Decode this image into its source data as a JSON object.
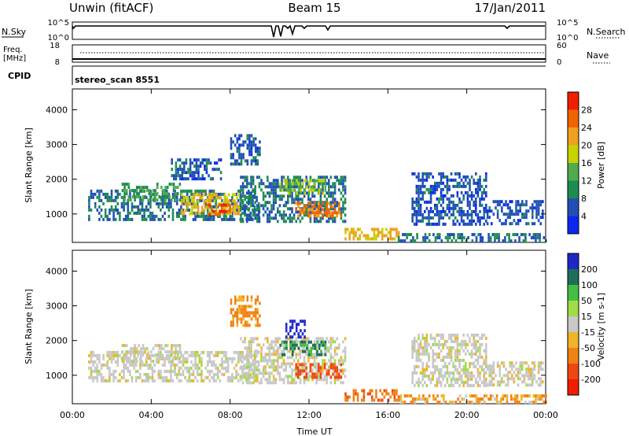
{
  "header": {
    "left": "Unwin (fitACF)",
    "center": "Beam 15",
    "right": "17/Jan/2011"
  },
  "status_panels": {
    "nsky_label": "N.Sky",
    "nsky_ticks": [
      "10^5",
      "10^0"
    ],
    "nsearch_label": "N.Search",
    "nsearch_ticks": [
      "10^5",
      "10^0"
    ],
    "freq_label": "Freq.",
    "freq_unit": "[MHz]",
    "freq_ticks": [
      "18",
      "8"
    ],
    "nave_label": "Nave",
    "nave_ticks": [
      "60",
      "0"
    ],
    "cpid_label": "CPID",
    "cpid_value": "stereo_scan 8551"
  },
  "colors": {
    "power": [
      "#0a28f0",
      "#2050b4",
      "#1e8c50",
      "#50aa50",
      "#c8d200",
      "#f0a01e",
      "#f06400",
      "#f01e00"
    ],
    "velocity": [
      "#1e28c8",
      "#1e6e5a",
      "#46be46",
      "#a0dc46",
      "#c8c8c8",
      "#f0b428",
      "#f08214",
      "#f04614",
      "#f01e00"
    ]
  },
  "chart_data": [
    {
      "type": "heatmap",
      "title": "Power",
      "ylabel": "Slant Range [km]",
      "xlabel": "",
      "colorbar_label": "Power [dB]",
      "colorbar_ticks": [
        "28",
        "24",
        "20",
        "16",
        "12",
        "8",
        "4"
      ],
      "colorbar_range": [
        0,
        32
      ],
      "xlim_hours": [
        0,
        24
      ],
      "ylim_km": [
        180,
        4600
      ],
      "x_ticks": [
        "00:00",
        "04:00",
        "08:00",
        "12:00",
        "16:00",
        "20:00",
        "00:00"
      ],
      "y_ticks": [
        1000,
        2000,
        3000,
        4000
      ],
      "bands": [
        {
          "t": [
            0.8,
            9.5
          ],
          "r": [
            800,
            1700
          ],
          "v": 8
        },
        {
          "t": [
            2.5,
            5.5
          ],
          "r": [
            1400,
            1900
          ],
          "v": 12
        },
        {
          "t": [
            5.5,
            8.5
          ],
          "r": [
            1000,
            1600
          ],
          "v": 20
        },
        {
          "t": [
            6.8,
            8.0
          ],
          "r": [
            950,
            1300
          ],
          "v": 27
        },
        {
          "t": [
            8.5,
            13.8
          ],
          "r": [
            800,
            2100
          ],
          "v": 8
        },
        {
          "t": [
            10.5,
            12.8
          ],
          "r": [
            1550,
            2000
          ],
          "v": 16
        },
        {
          "t": [
            11.3,
            13.6
          ],
          "r": [
            900,
            1350
          ],
          "v": 25
        },
        {
          "t": [
            8.0,
            9.5
          ],
          "r": [
            2400,
            3300
          ],
          "v": 6
        },
        {
          "t": [
            5.0,
            7.5
          ],
          "r": [
            2000,
            2600
          ],
          "v": 6
        },
        {
          "t": [
            13.8,
            16.5
          ],
          "r": [
            300,
            600
          ],
          "v": 20
        },
        {
          "t": [
            16.5,
            24.0
          ],
          "r": [
            200,
            450
          ],
          "v": 8
        },
        {
          "t": [
            17.2,
            21.0
          ],
          "r": [
            700,
            2200
          ],
          "v": 6
        },
        {
          "t": [
            21.0,
            23.8
          ],
          "r": [
            700,
            1400
          ],
          "v": 6
        }
      ]
    },
    {
      "type": "heatmap",
      "title": "Velocity",
      "ylabel": "Slant Range [km]",
      "xlabel": "Time UT",
      "colorbar_label": "Velocity [m s-1]",
      "colorbar_ticks": [
        "200",
        "100",
        "50",
        "15",
        "-15",
        "-50",
        "-100",
        "-200"
      ],
      "colorbar_range": [
        -250,
        250
      ],
      "xlim_hours": [
        0,
        24
      ],
      "ylim_km": [
        180,
        4600
      ],
      "x_ticks": [
        "00:00",
        "04:00",
        "08:00",
        "12:00",
        "16:00",
        "20:00",
        "00:00"
      ],
      "y_ticks": [
        1000,
        2000,
        3000,
        4000
      ],
      "bands": [
        {
          "t": [
            0.8,
            9.5
          ],
          "r": [
            800,
            1700
          ],
          "v": 0
        },
        {
          "t": [
            2.5,
            5.5
          ],
          "r": [
            1400,
            1900
          ],
          "v": 0
        },
        {
          "t": [
            8.5,
            13.8
          ],
          "r": [
            800,
            2100
          ],
          "v": 0
        },
        {
          "t": [
            10.5,
            12.8
          ],
          "r": [
            1550,
            2000
          ],
          "v": 80
        },
        {
          "t": [
            11.3,
            13.6
          ],
          "r": [
            900,
            1350
          ],
          "v": -90
        },
        {
          "t": [
            10.8,
            11.8
          ],
          "r": [
            2100,
            2600
          ],
          "v": 200
        },
        {
          "t": [
            8.0,
            9.5
          ],
          "r": [
            2400,
            3300
          ],
          "v": -40
        },
        {
          "t": [
            13.8,
            16.5
          ],
          "r": [
            300,
            600
          ],
          "v": -70
        },
        {
          "t": [
            16.5,
            24.0
          ],
          "r": [
            200,
            450
          ],
          "v": -30
        },
        {
          "t": [
            17.2,
            21.0
          ],
          "r": [
            700,
            2200
          ],
          "v": 0
        },
        {
          "t": [
            21.0,
            23.8
          ],
          "r": [
            700,
            1400
          ],
          "v": 0
        }
      ]
    }
  ]
}
